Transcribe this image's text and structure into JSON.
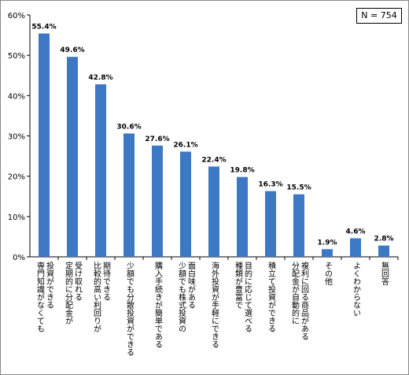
{
  "chart_data": {
    "type": "bar",
    "categories": [
      [
        "投資ができる",
        "専門知識がなくても"
      ],
      [
        "受け取れる",
        "定期的に分配金が"
      ],
      [
        "期待できる",
        "比較的高い利回りが"
      ],
      [
        "少額でも分散投資ができる"
      ],
      [
        "購入手続きが簡単である"
      ],
      [
        "面白味がある",
        "少額でも株式投資の"
      ],
      [
        "海外投資が手軽にできる"
      ],
      [
        "目的に応じて選べる",
        "種類が豊富で"
      ],
      [
        "積立て投資ができる"
      ],
      [
        "複利に回る商品がある",
        "分配金が自動的に"
      ],
      [
        "その他"
      ],
      [
        "よくわからない"
      ],
      [
        "無回答"
      ]
    ],
    "values": [
      55.4,
      49.6,
      42.8,
      30.6,
      27.6,
      26.1,
      22.4,
      19.8,
      16.3,
      15.5,
      1.9,
      4.6,
      2.8
    ],
    "value_labels": [
      "55.4%",
      "49.6%",
      "42.8%",
      "30.6%",
      "27.6%",
      "26.1%",
      "22.4%",
      "19.8%",
      "16.3%",
      "15.5%",
      "1.9%",
      "4.6%",
      "2.8%"
    ],
    "yticks": [
      "0%",
      "10%",
      "20%",
      "30%",
      "40%",
      "50%",
      "60%"
    ],
    "ylim": [
      0,
      60
    ],
    "grid": true,
    "bar_color": "#3c78c3",
    "title": "",
    "xlabel": "",
    "ylabel": ""
  },
  "annotation": {
    "sample_size": "N = 754"
  }
}
